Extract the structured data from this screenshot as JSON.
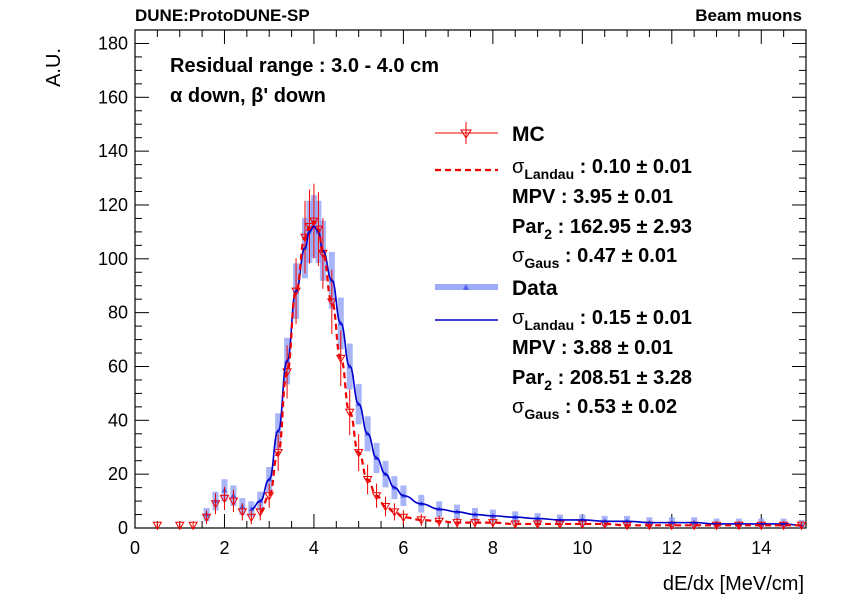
{
  "header": {
    "left": "DUNE:ProtoDUNE-SP",
    "right": "Beam muons"
  },
  "annotations": {
    "line1": "Residual range : 3.0 - 4.0 cm",
    "line2": "α down, β' down"
  },
  "legend": {
    "mc_label": "MC",
    "mc_fit": {
      "sigma_landau": "σ",
      "sigma_landau_sub": "Landau",
      "sigma_landau_val": " : 0.10 ± 0.01",
      "mpv": "MPV : 3.95 ± 0.01",
      "par2": "Par",
      "par2_sub": "2",
      "par2_val": " : 162.95 ± 2.93",
      "sigma_gaus": "σ",
      "sigma_gaus_sub": "Gaus",
      "sigma_gaus_val": " : 0.47 ± 0.01"
    },
    "data_label": "Data",
    "data_fit": {
      "sigma_landau": "σ",
      "sigma_landau_sub": "Landau",
      "sigma_landau_val": " : 0.15 ± 0.01",
      "mpv": "MPV : 3.88 ± 0.01",
      "par2": "Par",
      "par2_sub": "2",
      "par2_val": " : 208.51 ± 3.28",
      "sigma_gaus": "σ",
      "sigma_gaus_sub": "Gaus",
      "sigma_gaus_val": " : 0.53 ± 0.02"
    }
  },
  "chart_data": {
    "type": "scatter",
    "xlabel": "dE/dx [MeV/cm]",
    "ylabel": "A.U.",
    "xlim": [
      0,
      15
    ],
    "ylim": [
      0,
      185
    ],
    "xticks": [
      0,
      2,
      4,
      6,
      8,
      10,
      12,
      14
    ],
    "yticks": [
      0,
      20,
      40,
      60,
      80,
      100,
      120,
      140,
      160,
      180
    ],
    "grid": false,
    "legend_position": "right",
    "colors": {
      "mc": "#ff0000",
      "data": "#6a7ff5",
      "data_fit": "#0000cc"
    },
    "series": [
      {
        "name": "MC",
        "style": "open-triangle-down markers with error bars",
        "x": [
          0.5,
          1.0,
          1.3,
          1.6,
          1.8,
          2.0,
          2.2,
          2.4,
          2.6,
          2.8,
          3.0,
          3.2,
          3.4,
          3.6,
          3.8,
          3.9,
          4.0,
          4.1,
          4.2,
          4.4,
          4.6,
          4.8,
          5.0,
          5.2,
          5.4,
          5.6,
          5.8,
          6.0,
          6.4,
          6.8,
          7.2,
          7.6,
          8.0,
          8.5,
          9.0,
          9.5,
          10.0,
          10.5,
          11.0,
          11.5,
          12.0,
          12.5,
          13.0,
          13.5,
          14.0,
          14.5,
          14.9
        ],
        "y": [
          1,
          1,
          1,
          4,
          9,
          11,
          10,
          6,
          4,
          6,
          12,
          28,
          58,
          88,
          108,
          112,
          114,
          111,
          102,
          84,
          63,
          43,
          28,
          18,
          12,
          8,
          6,
          4,
          3,
          2.5,
          2,
          2,
          2,
          1.5,
          1.5,
          1.5,
          1.5,
          1.5,
          1,
          1,
          1,
          1,
          1,
          1,
          1,
          1,
          1
        ]
      },
      {
        "name": "Data",
        "style": "filled markers with wide error bars",
        "x": [
          1.6,
          1.8,
          2.0,
          2.2,
          2.4,
          2.6,
          2.8,
          3.0,
          3.2,
          3.4,
          3.6,
          3.8,
          3.9,
          4.0,
          4.1,
          4.2,
          4.4,
          4.6,
          4.8,
          5.0,
          5.2,
          5.4,
          5.6,
          5.8,
          6.0,
          6.4,
          6.8,
          7.2,
          7.6,
          8.0,
          8.5,
          9.0,
          9.5,
          10.0,
          10.5,
          11.0,
          11.5,
          12.0,
          12.5,
          13.0,
          13.5,
          14.0,
          14.5,
          14.9
        ],
        "y": [
          5,
          10,
          14,
          12,
          8,
          7,
          10,
          18,
          36,
          62,
          88,
          104,
          110,
          112,
          110,
          103,
          92,
          76,
          60,
          46,
          35,
          26,
          20,
          15,
          12,
          9,
          7,
          6,
          5,
          4.5,
          4,
          3.5,
          3,
          3,
          2.5,
          2.5,
          2,
          2,
          2,
          1.5,
          1.5,
          1.5,
          1.5,
          1
        ]
      }
    ]
  }
}
